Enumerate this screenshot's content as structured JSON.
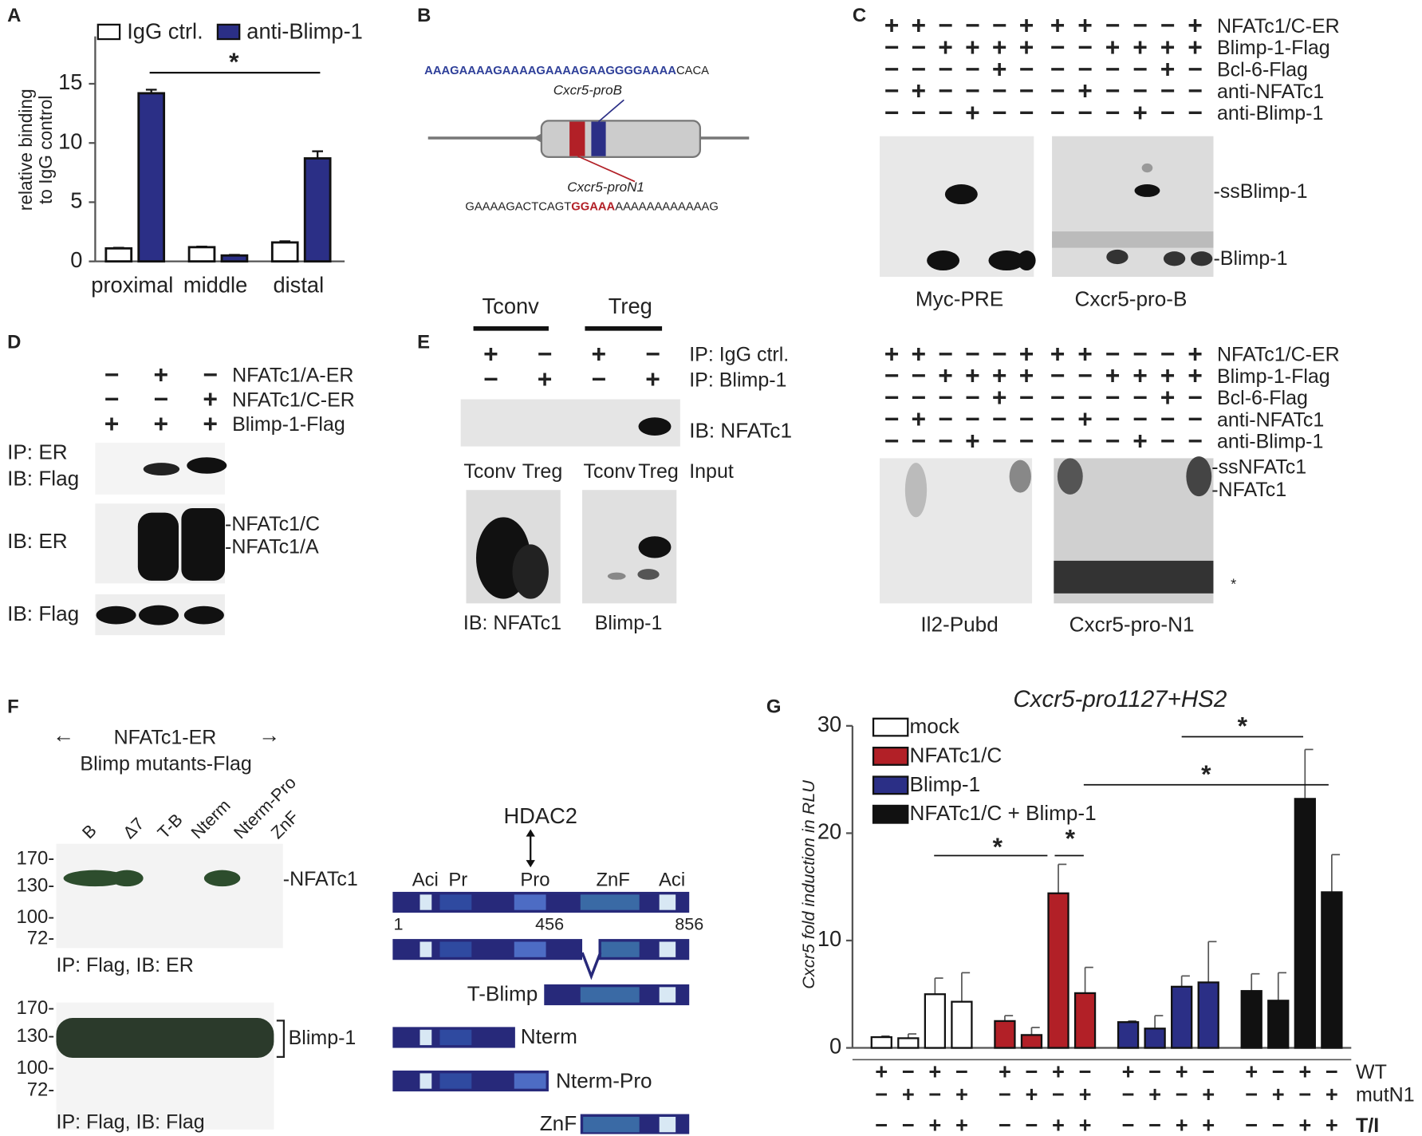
{
  "panel_labels": [
    "A",
    "B",
    "C",
    "D",
    "E",
    "F",
    "G"
  ],
  "chart_data": [
    {
      "type": "bar",
      "legend": "top",
      "ylabel": [
        "relative binding",
        "to IgG control"
      ],
      "categories": [
        "proximal",
        "middle",
        "distal"
      ],
      "series": [
        {
          "name": "IgG ctrl.",
          "color": "#ffffff",
          "values": [
            1.1,
            1.2,
            1.6
          ],
          "errors": [
            0.05,
            0.05,
            0.1
          ]
        },
        {
          "name": "anti-Blimp-1",
          "color": "#2b2f86",
          "values": [
            14.2,
            0.5,
            8.7
          ],
          "errors": [
            0.3,
            0.05,
            0.6
          ]
        }
      ],
      "ylim": [
        0,
        19
      ],
      "yticks": [
        0,
        5,
        10,
        15
      ],
      "annotations": [
        "*"
      ]
    },
    {
      "type": "bar",
      "legend": "top-left",
      "title": "Cxcr5-pro1127+HS2",
      "ylabel": "Cxcr5 fold induction in RLU",
      "series": [
        {
          "name": "mock",
          "color": "#ffffff",
          "values": [
            1.0,
            0.9,
            5.0,
            4.3
          ],
          "errors": [
            0.1,
            0.4,
            1.5,
            2.7
          ]
        },
        {
          "name": "NFATc1/C",
          "color": "#b22027",
          "values": [
            2.5,
            1.2,
            14.4,
            5.1
          ],
          "errors": [
            0.5,
            0.7,
            2.7,
            2.4
          ]
        },
        {
          "name": "Blimp-1",
          "color": "#2b2f86",
          "values": [
            2.4,
            1.8,
            5.7,
            6.1
          ],
          "errors": [
            0.1,
            1.2,
            1.0,
            3.8
          ]
        },
        {
          "name": "NFATc1/C + Blimp-1",
          "color": "#111111",
          "values": [
            5.3,
            4.4,
            23.2,
            14.5
          ],
          "errors": [
            1.6,
            2.6,
            4.6,
            3.5
          ]
        }
      ],
      "condition_rows": [
        {
          "label": "WT",
          "signs": [
            "+",
            "−",
            "+",
            "−"
          ]
        },
        {
          "label": "mutN1",
          "signs": [
            "−",
            "+",
            "−",
            "+"
          ]
        },
        {
          "label": "T/I",
          "signs": [
            "−",
            "−",
            "+",
            "+"
          ]
        }
      ],
      "ylim": [
        0,
        30
      ],
      "yticks": [
        0,
        10,
        20,
        30
      ],
      "annotations": [
        {
          "text": "*",
          "color": "#111111"
        },
        {
          "text": "*",
          "color": "#b22027"
        },
        {
          "text": "*",
          "color": "#b22027"
        },
        {
          "text": "*",
          "color": "#2b2f86"
        }
      ]
    }
  ],
  "B": {
    "seq1_blue": "AAAGAAAAGAAAAGAAAAGAAGGGGAAAA",
    "seq1_black": "CACA",
    "site_b": "Cxcr5-proB",
    "site_n1": "Cxcr5-proN1",
    "seq2_a": "GAAAAGACTCAGT",
    "seq2_red": "GGAAA",
    "seq2_b": "AAAAAAAAAAAAG"
  },
  "C": {
    "rows": [
      {
        "label": "NFATc1/C-ER",
        "signs": "++−−−+"
      },
      {
        "label": "Blimp-1-Flag",
        "signs": "−−++++"
      },
      {
        "label": "Bcl-6-Flag",
        "signs": "−−−−+−"
      },
      {
        "label": "anti-NFATc1",
        "signs": "−+−−−−"
      },
      {
        "label": "anti-Blimp-1",
        "signs": "−−−+−−"
      }
    ],
    "top_bands": [
      "-ssBlimp-1",
      "-Blimp-1"
    ],
    "top_probes": [
      "Myc-PRE",
      "Cxcr5-pro-B"
    ],
    "bottom_bands": [
      "-ssNFATc1",
      "-NFATc1",
      "*"
    ],
    "bottom_probes": [
      "Il2-Pubd",
      "Cxcr5-pro-N1"
    ]
  },
  "D": {
    "rows": [
      {
        "label": "NFATc1/A-ER",
        "signs": "−+−"
      },
      {
        "label": "NFATc1/C-ER",
        "signs": "−−+"
      },
      {
        "label": "Blimp-1-Flag",
        "signs": "+++"
      }
    ],
    "blot_labels": [
      "IP: ER",
      "IB: Flag",
      "IB: ER",
      "IB: Flag"
    ],
    "bands": [
      "-NFATc1/C",
      "-NFATc1/A"
    ]
  },
  "E": {
    "groups": [
      "Tconv",
      "Treg"
    ],
    "rows": [
      {
        "label": "IP: IgG ctrl.",
        "signs": "+−+−"
      },
      {
        "label": "IP: Blimp-1",
        "signs": "−+−+"
      }
    ],
    "ib": "IB: NFATc1",
    "input_lanes": [
      "Tconv",
      "Treg",
      "Tconv",
      "Treg"
    ],
    "input": "Input",
    "bottom": [
      "IB: NFATc1",
      "Blimp-1"
    ]
  },
  "F": {
    "arrow_left": "←",
    "header1": "NFATc1-ER",
    "arrow_right": "→",
    "header2": "Blimp mutants-Flag",
    "lanes": [
      "B",
      "Δ7",
      "T-B",
      "Nterm",
      "Nterm-Pro",
      "ZnF"
    ],
    "mw": [
      "170-",
      "130-",
      "100-",
      "72-"
    ],
    "band1": "-NFATc1",
    "caption1": "IP: Flag, IB: ER",
    "band2": "Blimp-1",
    "caption2": "IP: Flag, IB: Flag",
    "hdac": "HDAC2",
    "domains": [
      "Aci",
      "Pr",
      "Pro",
      "ZnF",
      "Aci"
    ],
    "positions": [
      "1",
      "456",
      "856"
    ],
    "constructs": [
      "T-Blimp",
      "Nterm",
      "Nterm-Pro",
      "ZnF"
    ]
  }
}
